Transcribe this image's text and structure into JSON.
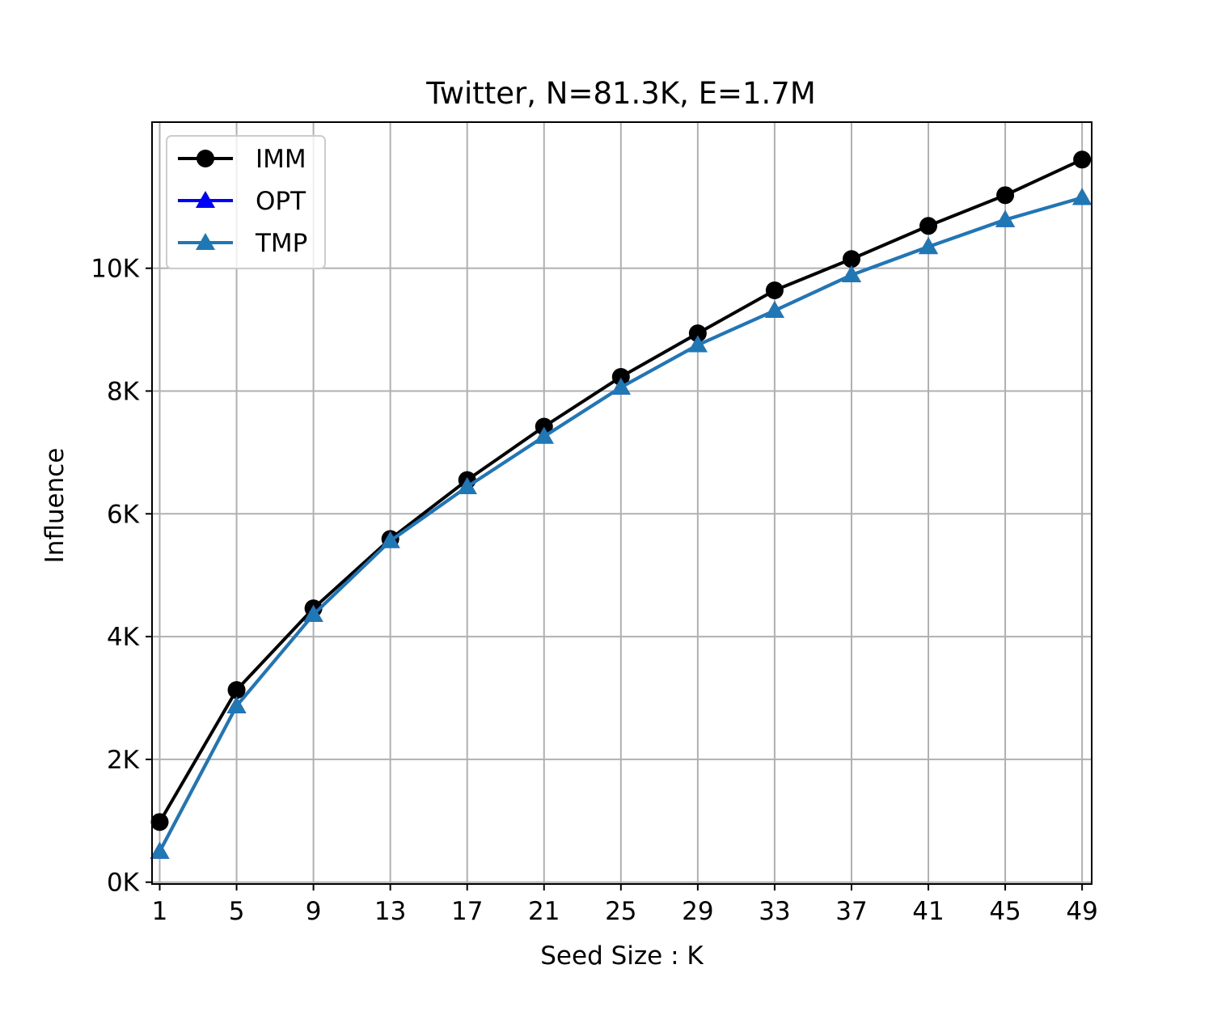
{
  "chart_data": {
    "type": "line",
    "title": "Twitter, N=81.3K, E=1.7M",
    "xlabel": "Seed Size : K",
    "ylabel": "Influence",
    "x": [
      1,
      5,
      9,
      13,
      17,
      21,
      25,
      29,
      33,
      37,
      41,
      45,
      49
    ],
    "x_tick_labels": [
      "1",
      "5",
      "9",
      "13",
      "17",
      "21",
      "25",
      "29",
      "33",
      "37",
      "41",
      "45",
      "49"
    ],
    "y_ticks": [
      0,
      2000,
      4000,
      6000,
      8000,
      10000
    ],
    "y_tick_labels": [
      "0K",
      "2K",
      "4K",
      "6K",
      "8K",
      "10K"
    ],
    "xlim": [
      0.6,
      49.5
    ],
    "ylim": [
      -30,
      12380
    ],
    "grid": true,
    "legend_position": "upper-left",
    "series": [
      {
        "name": "IMM",
        "color": "#000000",
        "marker": "circle",
        "values": [
          980,
          3130,
          4460,
          5590,
          6550,
          7420,
          8230,
          8940,
          9640,
          10150,
          10690,
          11190,
          11770
        ]
      },
      {
        "name": "OPT",
        "color": "#0000ff",
        "marker": "triangle",
        "values": [
          500,
          2870,
          4360,
          5560,
          6440,
          7260,
          8060,
          8750,
          9310,
          9890,
          10350,
          10790,
          11150
        ]
      },
      {
        "name": "TMP",
        "color": "#1f77b4",
        "marker": "triangle",
        "values": [
          500,
          2870,
          4360,
          5560,
          6440,
          7260,
          8060,
          8750,
          9310,
          9890,
          10350,
          10790,
          11150
        ]
      }
    ]
  }
}
